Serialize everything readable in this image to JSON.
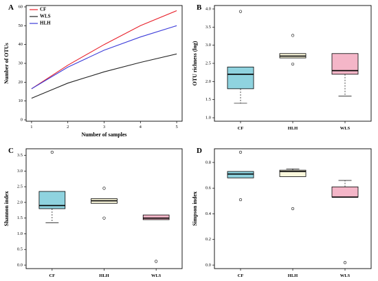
{
  "chart_data": [
    {
      "panel": "A",
      "type": "line",
      "x": [
        1,
        2,
        3,
        4,
        5
      ],
      "series": [
        {
          "name": "CF",
          "color": "#e8202a",
          "values": [
            16.5,
            29,
            40,
            50,
            58
          ]
        },
        {
          "name": "WLS",
          "color": "#222222",
          "values": [
            11.5,
            19.5,
            25.5,
            30.5,
            35
          ]
        },
        {
          "name": "HLH",
          "color": "#3b3bd9",
          "values": [
            16.5,
            28,
            37,
            44,
            50
          ]
        }
      ],
      "xlabel": "Number of samples",
      "ylabel": "Number of OTUs",
      "x_ticks": [
        "1",
        "2",
        "3",
        "4",
        "5"
      ],
      "y_ticks": [
        "0",
        "10",
        "20",
        "30",
        "40",
        "50",
        "60"
      ],
      "xlim": [
        0.85,
        5.15
      ],
      "ylim": [
        0,
        60
      ],
      "legend_position": "top-left"
    },
    {
      "panel": "B",
      "type": "box",
      "categories": [
        "CF",
        "HLH",
        "WLS"
      ],
      "ylabel": "OTU richness (log)",
      "y_ticks": [
        "1.0",
        "1.5",
        "2.0",
        "2.5",
        "3.0",
        "3.5",
        "4.0"
      ],
      "ylim": [
        1.0,
        4.0
      ],
      "boxes": [
        {
          "name": "CF",
          "color": "#8fd3df",
          "whisker_low": 1.4,
          "q1": 1.8,
          "median": 2.2,
          "q3": 2.4,
          "whisker_high": 2.4,
          "outliers": [
            3.93
          ]
        },
        {
          "name": "HLH",
          "color": "#fbf8dc",
          "whisker_low": 2.65,
          "q1": 2.65,
          "median": 2.7,
          "q3": 2.77,
          "whisker_high": 2.77,
          "outliers": [
            2.48,
            3.27
          ]
        },
        {
          "name": "WLS",
          "color": "#f4b6c8",
          "whisker_low": 1.6,
          "q1": 2.2,
          "median": 2.3,
          "q3": 2.77,
          "whisker_high": 2.77,
          "outliers": []
        }
      ]
    },
    {
      "panel": "C",
      "type": "box",
      "categories": [
        "CF",
        "HLH",
        "WLS"
      ],
      "ylabel": "Shannon index",
      "y_ticks": [
        "0.0",
        "0.5",
        "1.0",
        "1.5",
        "2.0",
        "2.5",
        "3.0",
        "3.5"
      ],
      "ylim": [
        0.0,
        3.6
      ],
      "boxes": [
        {
          "name": "CF",
          "color": "#8fd3df",
          "whisker_low": 1.35,
          "q1": 1.8,
          "median": 1.9,
          "q3": 2.35,
          "whisker_high": 2.35,
          "outliers": [
            3.6
          ]
        },
        {
          "name": "HLH",
          "color": "#fbf8dc",
          "whisker_low": 1.97,
          "q1": 1.97,
          "median": 2.05,
          "q3": 2.12,
          "whisker_high": 2.12,
          "outliers": [
            1.5,
            2.45
          ]
        },
        {
          "name": "WLS",
          "color": "#f4b6c8",
          "whisker_low": 1.45,
          "q1": 1.45,
          "median": 1.5,
          "q3": 1.6,
          "whisker_high": 1.6,
          "outliers": [
            0.12
          ]
        }
      ]
    },
    {
      "panel": "D",
      "type": "box",
      "categories": [
        "CF",
        "HLH",
        "WLS"
      ],
      "ylabel": "Simpson index",
      "y_ticks": [
        "0.0",
        "0.2",
        "0.4",
        "0.6",
        "0.8"
      ],
      "ylim": [
        0.0,
        0.88
      ],
      "boxes": [
        {
          "name": "CF",
          "color": "#8fd3df",
          "whisker_low": 0.68,
          "q1": 0.68,
          "median": 0.71,
          "q3": 0.73,
          "whisker_high": 0.73,
          "outliers": [
            0.51,
            0.88
          ]
        },
        {
          "name": "HLH",
          "color": "#fbf8dc",
          "whisker_low": 0.69,
          "q1": 0.69,
          "median": 0.73,
          "q3": 0.74,
          "whisker_high": 0.75,
          "outliers": [
            0.44
          ]
        },
        {
          "name": "WLS",
          "color": "#f4b6c8",
          "whisker_low": 0.53,
          "q1": 0.53,
          "median": 0.53,
          "q3": 0.61,
          "whisker_high": 0.66,
          "outliers": [
            0.02
          ]
        }
      ]
    }
  ]
}
